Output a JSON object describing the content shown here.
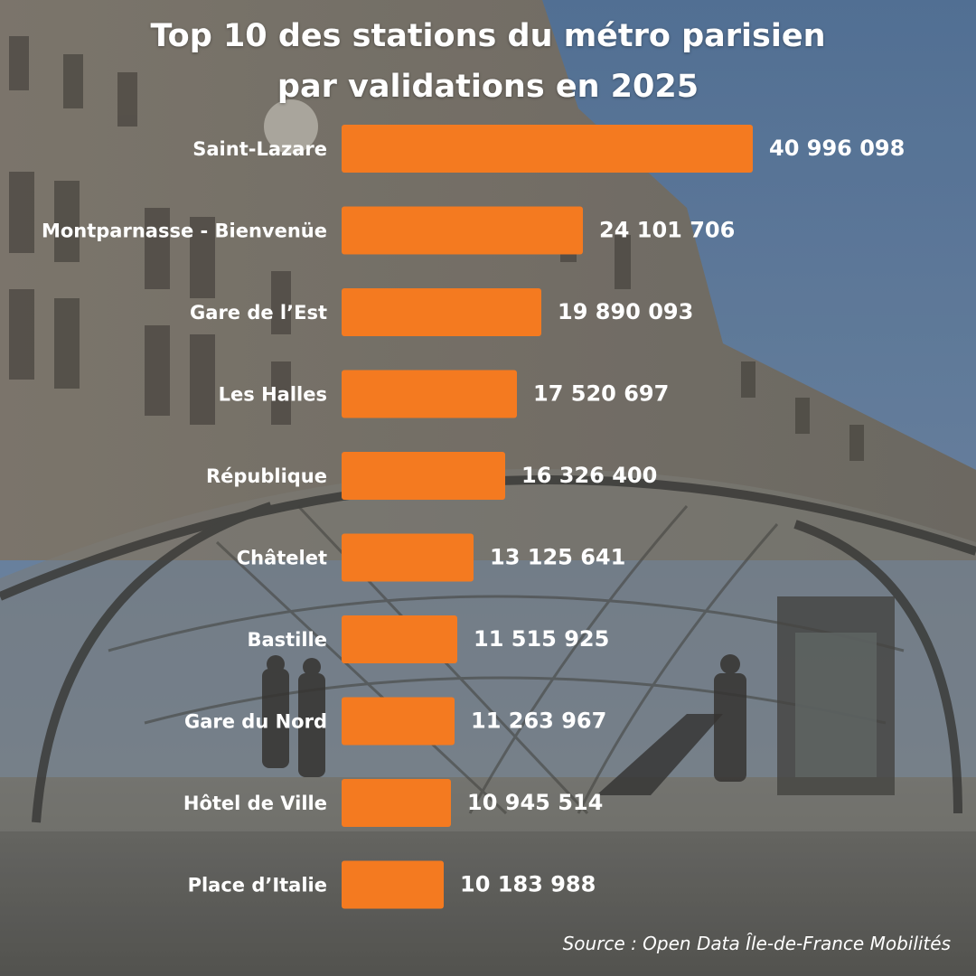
{
  "header": {
    "title_line1": "Top 10 des stations du métro parisien",
    "title_line2": "par validations en 2025"
  },
  "chart_data": {
    "type": "bar",
    "orientation": "horizontal",
    "title": "Top 10 des stations du métro parisien par validations en 2025",
    "categories": [
      "Saint-Lazare",
      "Montparnasse - Bienvenüe",
      "Gare de l’Est",
      "Les Halles",
      "République",
      "Châtelet",
      "Bastille",
      "Gare du Nord",
      "Hôtel de Ville",
      "Place d’Italie"
    ],
    "values": [
      40996098,
      24101706,
      19890093,
      17520697,
      16326400,
      13125641,
      11515925,
      11263967,
      10945514,
      10183988
    ],
    "value_labels": [
      "40 996 098",
      "24 101 706",
      "19 890 093",
      "17 520 697",
      "16 326 400",
      "13 125 641",
      "11 515 925",
      "11 263 967",
      "10 945 514",
      "10 183 988"
    ],
    "bar_color": "#f47a20",
    "text_color": "#ffffff",
    "grid": false,
    "legend": "none"
  },
  "footer": {
    "source": "Source : Open Data Île-de-France Mobilités"
  },
  "background": {
    "description_icon": "station-photo-backdrop",
    "sky_color": "#6b88ad",
    "overlay_color": "#5c5c58"
  }
}
